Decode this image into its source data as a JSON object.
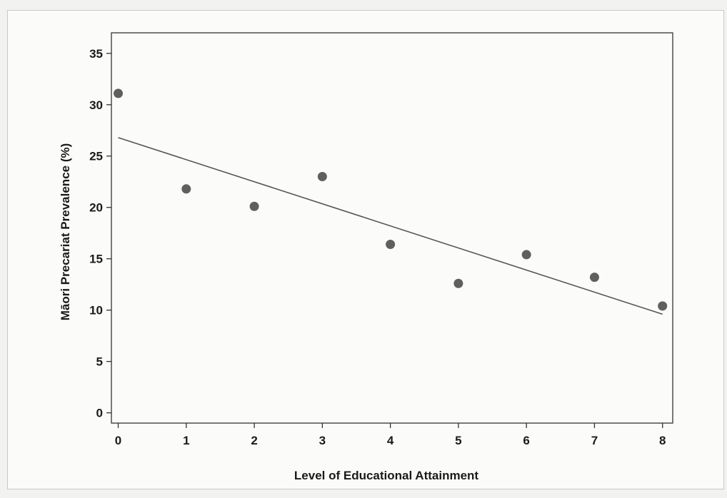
{
  "chart_data": {
    "type": "scatter",
    "title": "",
    "xlabel": "Level of Educational Attainment",
    "ylabel": "Māori Precariat Prevalence (%)",
    "xlim": [
      -0.1,
      8.15
    ],
    "ylim": [
      -1,
      37
    ],
    "xticks": [
      0,
      1,
      2,
      3,
      4,
      5,
      6,
      7,
      8
    ],
    "yticks": [
      0,
      5,
      10,
      15,
      20,
      25,
      30,
      35
    ],
    "grid": false,
    "legend": "none",
    "points": [
      {
        "x": 0,
        "y": 31.1
      },
      {
        "x": 1,
        "y": 21.8
      },
      {
        "x": 2,
        "y": 20.1
      },
      {
        "x": 3,
        "y": 23.0
      },
      {
        "x": 4,
        "y": 16.4
      },
      {
        "x": 5,
        "y": 12.6
      },
      {
        "x": 6,
        "y": 15.4
      },
      {
        "x": 7,
        "y": 13.2
      },
      {
        "x": 8,
        "y": 10.4
      }
    ],
    "trendline": {
      "type": "linear",
      "x": [
        0,
        8
      ],
      "y": [
        26.8,
        9.6
      ]
    },
    "colors": {
      "point": "#5f5f5f",
      "line": "#555555",
      "axis": "#333333",
      "text": "#1a1a1a"
    }
  }
}
